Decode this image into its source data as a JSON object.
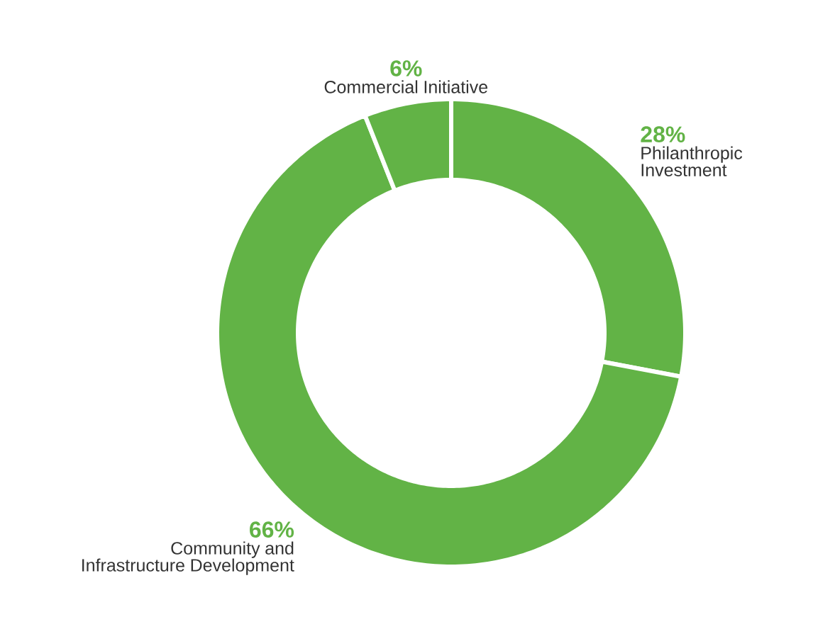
{
  "chart_data": {
    "type": "donut",
    "categories": [
      "Philanthropic Investment",
      "Community and Infrastructure Development",
      "Commercial Initiative"
    ],
    "values": [
      28,
      66,
      6
    ],
    "value_labels": [
      "28%",
      "66%",
      "6%"
    ],
    "colors": [
      "#62b346",
      "#62b346",
      "#62b346"
    ]
  }
}
